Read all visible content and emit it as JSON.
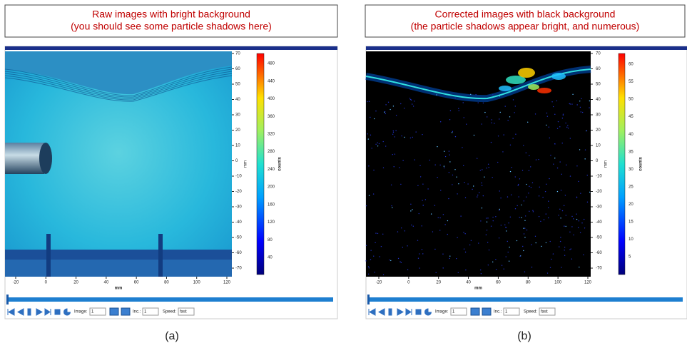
{
  "panels": [
    {
      "caption": [
        "Raw images with bright background",
        "(you should see some particle shadows here)"
      ],
      "label": "(a)",
      "y_ticks": [
        70,
        60,
        50,
        40,
        30,
        20,
        10,
        0,
        -10,
        -20,
        -30,
        -40,
        -50,
        -60,
        -70
      ],
      "y_axis_label": "mm",
      "x_ticks": [
        -20,
        0,
        20,
        40,
        60,
        80,
        100,
        120
      ],
      "x_axis_label": "mm",
      "colorbar_ticks": [
        480,
        440,
        400,
        360,
        320,
        280,
        240,
        200,
        160,
        120,
        80,
        40
      ],
      "colorbar_label": "counts",
      "controls": {
        "image_label": "Image:",
        "image_value": "1",
        "inc_label": "Inc.:",
        "inc_value": "1",
        "speed_label": "Speed:",
        "speed_value": "fast"
      }
    },
    {
      "caption": [
        "Corrected images with black background",
        "(the particle shadows appear bright, and numerous)"
      ],
      "label": "(b)",
      "y_ticks": [
        70,
        60,
        50,
        40,
        30,
        20,
        10,
        0,
        -10,
        -20,
        -30,
        -40,
        -50,
        -60,
        -70
      ],
      "y_axis_label": "mm",
      "x_ticks": [
        -20,
        0,
        20,
        40,
        60,
        80,
        100,
        120
      ],
      "x_axis_label": "mm",
      "colorbar_ticks": [
        60,
        55,
        50,
        45,
        40,
        35,
        30,
        25,
        20,
        15,
        10,
        5
      ],
      "colorbar_label": "counts",
      "controls": {
        "image_label": "Image:",
        "image_value": "1",
        "inc_label": "Inc.:",
        "inc_value": "1",
        "speed_label": "Speed:",
        "speed_value": "fast"
      }
    }
  ]
}
